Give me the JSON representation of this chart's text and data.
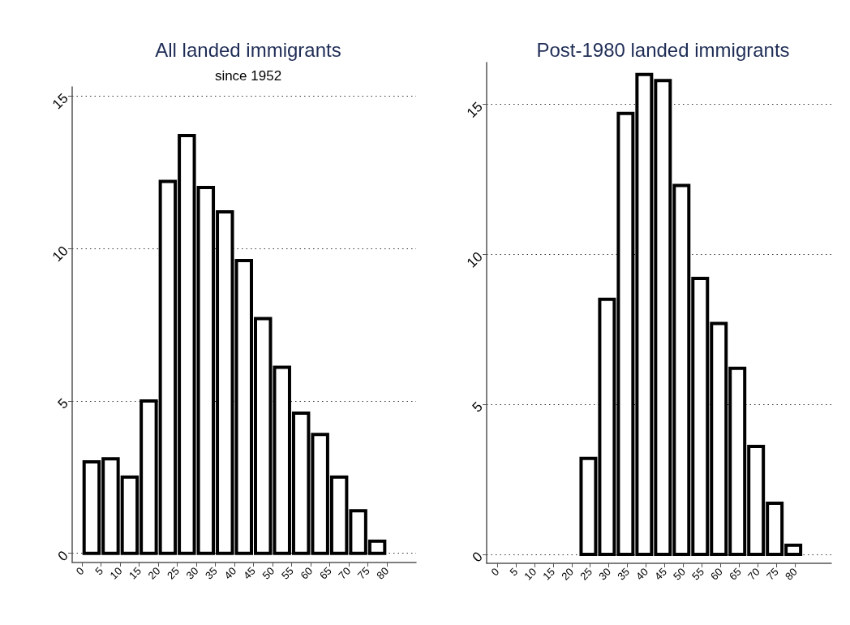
{
  "chart_data": [
    {
      "type": "histogram",
      "title": "All landed immigrants",
      "subtitle": "since 1952",
      "bins": [
        0,
        5,
        10,
        15,
        20,
        25,
        30,
        35,
        40,
        45,
        50,
        55,
        60,
        65,
        70,
        75,
        80
      ],
      "values": [
        3.0,
        3.1,
        2.5,
        5.0,
        12.2,
        13.7,
        12.0,
        11.2,
        9.6,
        7.7,
        6.1,
        4.6,
        3.9,
        2.5,
        1.4,
        0.4
      ],
      "color": "#000000",
      "xlim": [
        -2.6,
        87.7
      ],
      "xticks": [
        0,
        5,
        10,
        15,
        20,
        25,
        30,
        35,
        40,
        45,
        50,
        55,
        60,
        65,
        70,
        75,
        80
      ],
      "ylim": [
        -0.3,
        15.3
      ],
      "yticks": [
        0,
        5,
        10,
        15
      ],
      "grid": "y"
    },
    {
      "type": "histogram",
      "title": "Post-1980 landed immigrants",
      "bins": [
        22,
        27,
        32,
        37,
        42,
        47,
        52,
        57,
        62,
        67,
        72,
        77,
        82
      ],
      "values": [
        3.2,
        8.5,
        14.7,
        16.0,
        15.8,
        12.3,
        9.2,
        7.7,
        6.2,
        3.6,
        1.7,
        0.3
      ],
      "color": "#000000",
      "xlim": [
        -2.8,
        89.7
      ],
      "xticks": [
        0,
        5,
        10,
        15,
        20,
        25,
        30,
        35,
        40,
        45,
        50,
        55,
        60,
        65,
        70,
        75,
        80
      ],
      "ylim": [
        -0.3,
        16.4
      ],
      "yticks": [
        0,
        5,
        10,
        15
      ],
      "grid": "y"
    }
  ]
}
